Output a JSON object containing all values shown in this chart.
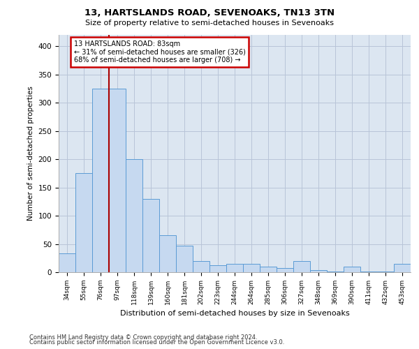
{
  "title1": "13, HARTSLANDS ROAD, SEVENOAKS, TN13 3TN",
  "title2": "Size of property relative to semi-detached houses in Sevenoaks",
  "xlabel": "Distribution of semi-detached houses by size in Sevenoaks",
  "ylabel": "Number of semi-detached properties",
  "categories": [
    "34sqm",
    "55sqm",
    "76sqm",
    "97sqm",
    "118sqm",
    "139sqm",
    "160sqm",
    "181sqm",
    "202sqm",
    "223sqm",
    "244sqm",
    "264sqm",
    "285sqm",
    "306sqm",
    "327sqm",
    "348sqm",
    "369sqm",
    "390sqm",
    "411sqm",
    "432sqm",
    "453sqm"
  ],
  "values": [
    33,
    175,
    325,
    325,
    200,
    130,
    65,
    47,
    20,
    12,
    15,
    15,
    10,
    8,
    20,
    4,
    1,
    10,
    1,
    1,
    15
  ],
  "bar_color": "#c6d9f0",
  "bar_edge_color": "#5b9bd5",
  "marker_line_color": "#aa0000",
  "annotation_box_color": "#ffffff",
  "annotation_box_edge": "#cc0000",
  "bg_color": "#ffffff",
  "ax_bg_color": "#dce6f1",
  "grid_color": "#b8c4d8",
  "ylim": [
    0,
    420
  ],
  "yticks": [
    0,
    50,
    100,
    150,
    200,
    250,
    300,
    350,
    400
  ],
  "marker_label": "13 HARTSLANDS ROAD: 83sqm",
  "annotation_line1": "← 31% of semi-detached houses are smaller (326)",
  "annotation_line2": "68% of semi-detached houses are larger (708) →",
  "footer1": "Contains HM Land Registry data © Crown copyright and database right 2024.",
  "footer2": "Contains public sector information licensed under the Open Government Licence v3.0."
}
